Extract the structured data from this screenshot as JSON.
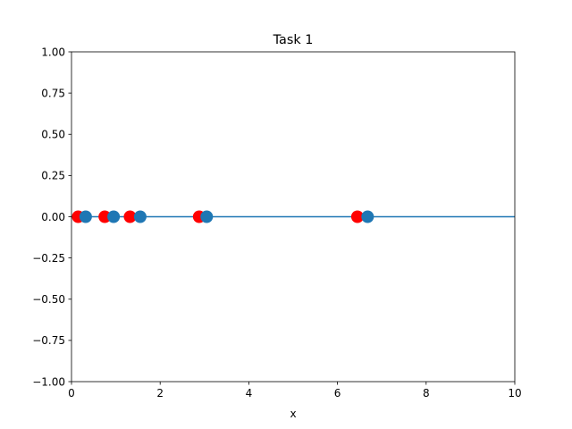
{
  "chart_data": {
    "type": "scatter",
    "title": "Task 1",
    "xlabel": "x",
    "ylabel": "",
    "xlim": [
      0,
      10
    ],
    "ylim": [
      -1.0,
      1.0
    ],
    "grid": false,
    "x_ticks": [
      0,
      2,
      4,
      6,
      8,
      10
    ],
    "x_tick_labels": [
      "0",
      "2",
      "4",
      "6",
      "8",
      "10"
    ],
    "y_ticks": [
      -1.0,
      -0.75,
      -0.5,
      -0.25,
      0.0,
      0.25,
      0.5,
      0.75,
      1.0
    ],
    "y_tick_labels": [
      "−1.00",
      "−0.75",
      "−0.50",
      "−0.25",
      "0.00",
      "0.25",
      "0.50",
      "0.75",
      "1.00"
    ],
    "baseline": {
      "y": 0,
      "color": "#1f77b4"
    },
    "series": [
      {
        "color": "#ff0000",
        "points": [
          {
            "x": 0.15,
            "y": 0
          },
          {
            "x": 0.75,
            "y": 0
          },
          {
            "x": 1.32,
            "y": 0
          },
          {
            "x": 2.88,
            "y": 0
          },
          {
            "x": 6.45,
            "y": 0
          }
        ]
      },
      {
        "color": "#1f77b4",
        "points": [
          {
            "x": 0.32,
            "y": 0
          },
          {
            "x": 0.95,
            "y": 0
          },
          {
            "x": 1.55,
            "y": 0
          },
          {
            "x": 3.05,
            "y": 0
          },
          {
            "x": 6.68,
            "y": 0
          }
        ]
      }
    ]
  }
}
